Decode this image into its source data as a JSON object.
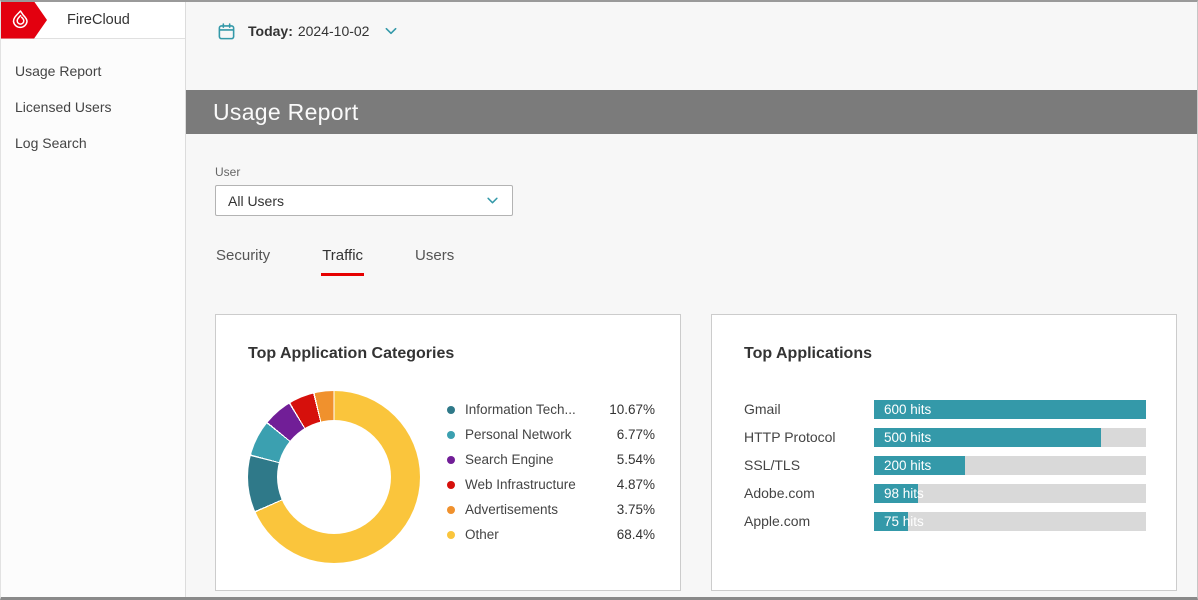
{
  "sidebar": {
    "brand": "FireCloud",
    "items": [
      {
        "label": "Usage Report"
      },
      {
        "label": "Licensed Users"
      },
      {
        "label": "Log Search"
      }
    ]
  },
  "datebar": {
    "label": "Today:",
    "value": "2024-10-02"
  },
  "header": {
    "title": "Usage Report"
  },
  "filters": {
    "user_label": "User",
    "user_value": "All Users"
  },
  "tabs": [
    {
      "label": "Security",
      "active": false
    },
    {
      "label": "Traffic",
      "active": true
    },
    {
      "label": "Users",
      "active": false
    }
  ],
  "colors": {
    "brand_red": "#e3000f",
    "tab_underline_red": "#e60000",
    "accent_teal": "#3499a9",
    "titlebar_gray": "#7b7b7b",
    "bar_track_gray": "#d9d9d9"
  },
  "chart_data": [
    {
      "type": "pie",
      "donut": true,
      "title": "Top Application Categories",
      "categories": [
        "Information Tech...",
        "Personal Network",
        "Search Engine",
        "Web Infrastructure",
        "Advertisements",
        "Other"
      ],
      "values": [
        10.67,
        6.77,
        5.54,
        4.87,
        3.75,
        68.4
      ],
      "value_labels": [
        "10.67%",
        "6.77%",
        "5.54%",
        "4.87%",
        "3.75%",
        "68.4%"
      ],
      "colors": [
        "#2f7989",
        "#3ba0b0",
        "#711e97",
        "#d6100c",
        "#f0912d",
        "#fac53c"
      ],
      "draw_order": [
        5,
        0,
        1,
        2,
        3,
        4
      ],
      "legend_position": "right"
    },
    {
      "type": "bar",
      "orientation": "horizontal",
      "title": "Top Applications",
      "categories": [
        "Gmail",
        "HTTP Protocol",
        "SSL/TLS",
        "Adobe.com",
        "Apple.com"
      ],
      "values": [
        600,
        500,
        200,
        98,
        75
      ],
      "value_labels": [
        "600 hits",
        "500 hits",
        "200 hits",
        "98 hits",
        "75 hits"
      ],
      "xlim": [
        0,
        600
      ],
      "bar_color": "#3499a9",
      "track_color": "#d9d9d9"
    }
  ]
}
